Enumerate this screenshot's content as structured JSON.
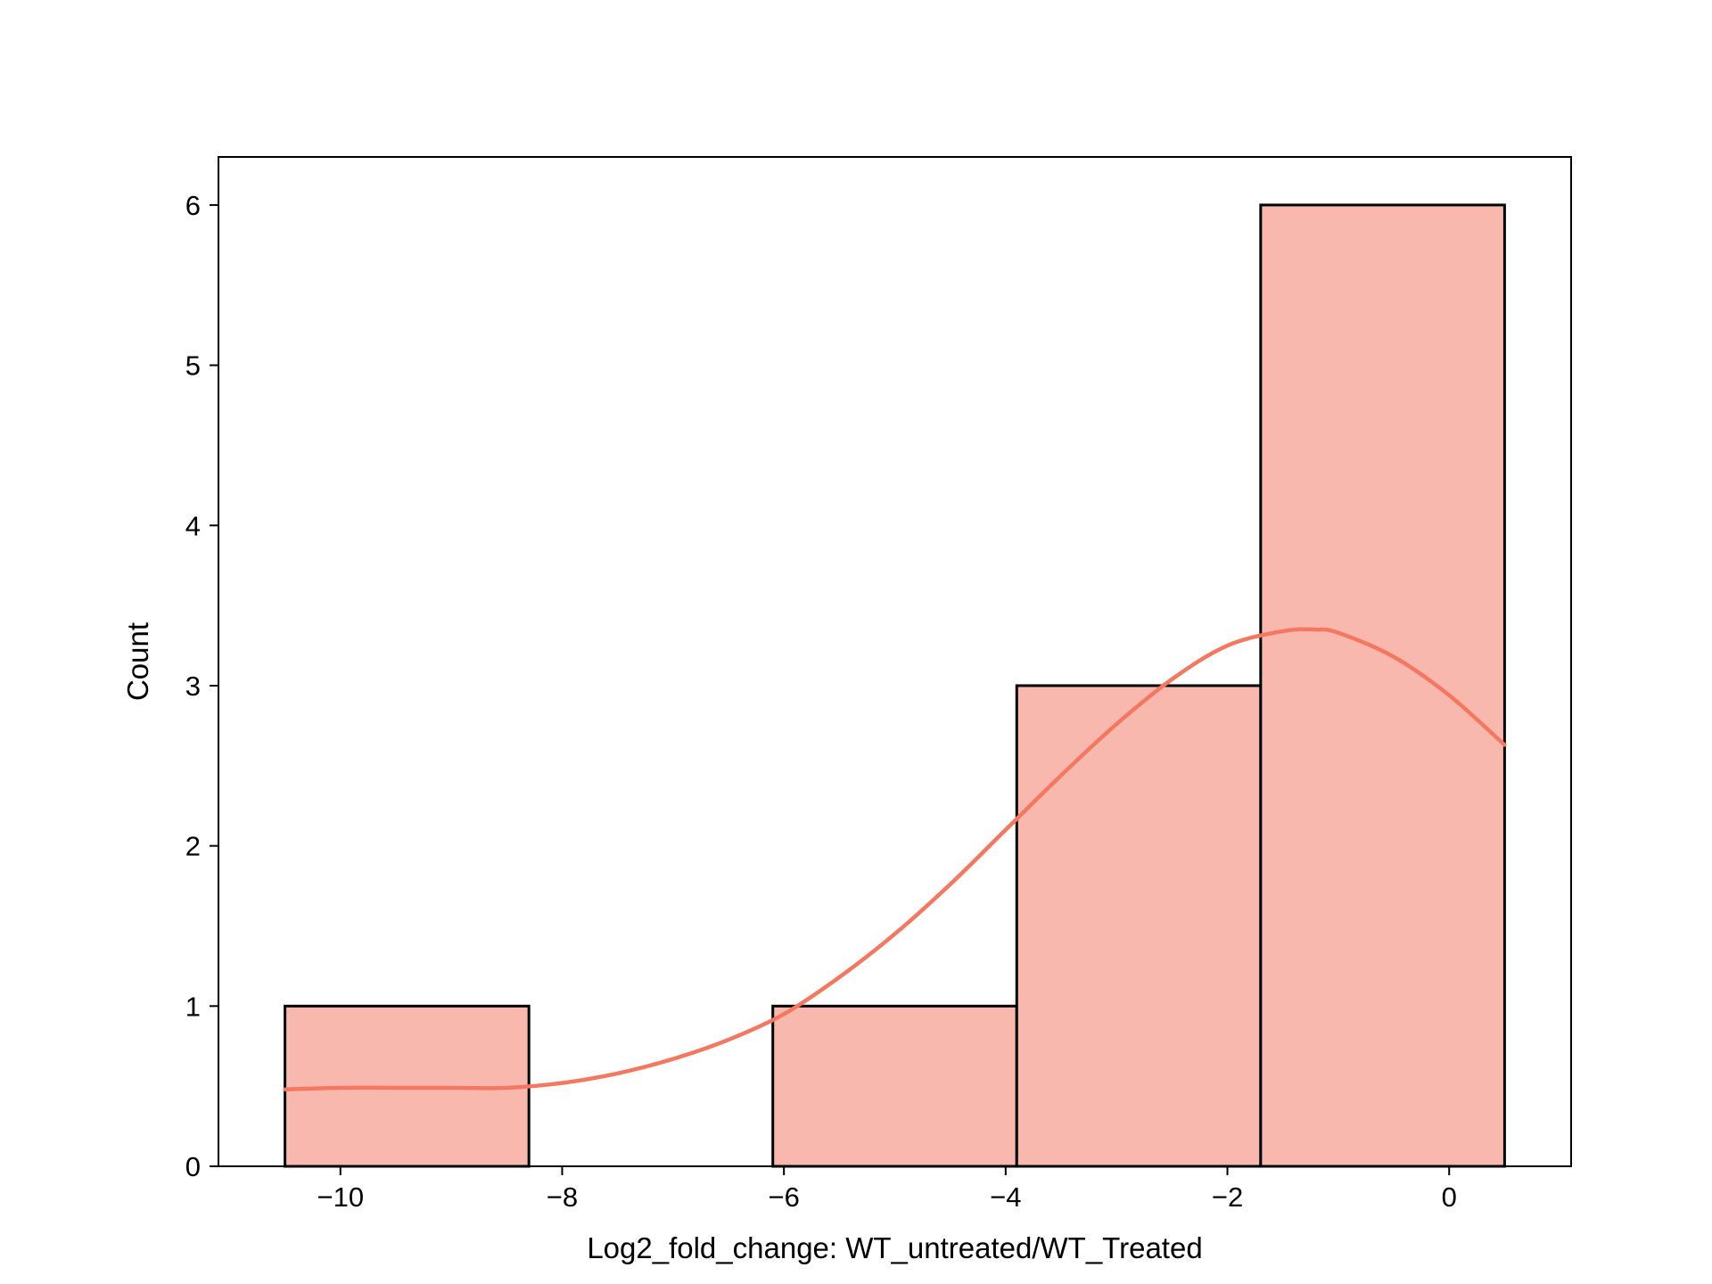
{
  "chart_data": {
    "type": "bar",
    "subtype": "histogram-with-kde",
    "title": "",
    "xlabel": "Log2_fold_change: WT_untreated/WT_Treated",
    "ylabel": "Count",
    "xlim": [
      -11.1,
      1.1
    ],
    "ylim": [
      0,
      6.3
    ],
    "xticks": [
      -10,
      -8,
      -6,
      -4,
      -2,
      0
    ],
    "xtick_labels": [
      "−10",
      "−8",
      "−6",
      "−4",
      "−2",
      "0"
    ],
    "yticks": [
      0,
      1,
      2,
      3,
      4,
      5,
      6
    ],
    "ytick_labels": [
      "0",
      "1",
      "2",
      "3",
      "4",
      "5",
      "6"
    ],
    "bins": [
      {
        "x0": -10.5,
        "x1": -8.3,
        "count": 1
      },
      {
        "x0": -8.3,
        "x1": -6.1,
        "count": 0
      },
      {
        "x0": -6.1,
        "x1": -3.9,
        "count": 1
      },
      {
        "x0": -3.9,
        "x1": -1.7,
        "count": 3
      },
      {
        "x0": -1.7,
        "x1": 0.5,
        "count": 6
      }
    ],
    "kde": {
      "x": [
        -10.5,
        -10.0,
        -9.5,
        -9.0,
        -8.5,
        -8.0,
        -7.5,
        -7.0,
        -6.5,
        -6.0,
        -5.5,
        -5.0,
        -4.5,
        -4.0,
        -3.5,
        -3.0,
        -2.5,
        -2.0,
        -1.5,
        -1.2,
        -1.0,
        -0.5,
        0.0,
        0.5
      ],
      "y": [
        0.48,
        0.49,
        0.49,
        0.49,
        0.49,
        0.52,
        0.58,
        0.67,
        0.79,
        0.95,
        1.18,
        1.45,
        1.76,
        2.1,
        2.44,
        2.76,
        3.04,
        3.25,
        3.34,
        3.35,
        3.33,
        3.18,
        2.94,
        2.63
      ]
    },
    "grid": false,
    "legend": "none",
    "colors": {
      "bar_fill": "#f8b8ad",
      "bar_edge": "#000000",
      "kde_line": "#f47860",
      "axes": "#000000"
    }
  }
}
